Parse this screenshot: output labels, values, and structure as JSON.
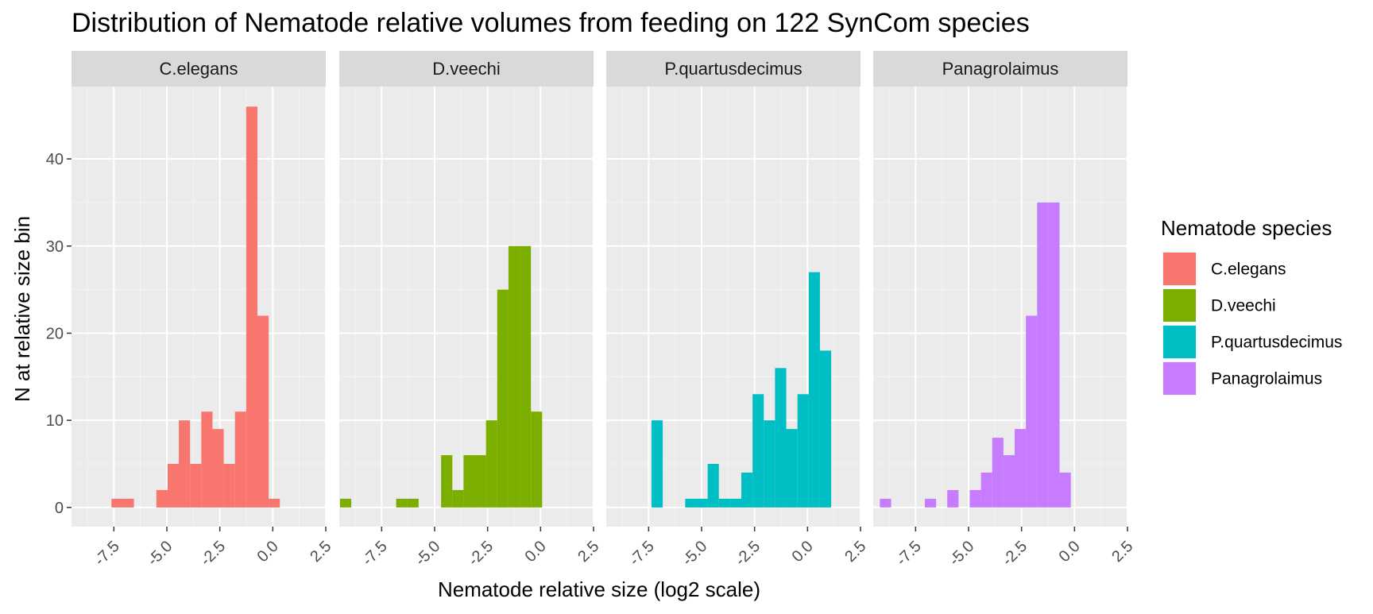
{
  "chart_data": {
    "type": "bar",
    "title": "Distribution of Nematode relative volumes from feeding on 122 SynCom species",
    "xlabel": "Nematode relative size (log2 scale)",
    "ylabel": "N at relative size bin",
    "xlim": [
      -9.5,
      2.5
    ],
    "ylim": [
      -2.2,
      48.3
    ],
    "x_ticks": [
      -7.5,
      -5.0,
      -2.5,
      0.0,
      2.5
    ],
    "x_tick_labels": [
      "-7.5",
      "-5.0",
      "-2.5",
      "0.0",
      "2.5"
    ],
    "y_ticks": [
      0,
      10,
      20,
      30,
      40
    ],
    "y_tick_labels": [
      "0",
      "10",
      "20",
      "30",
      "40"
    ],
    "bin_width": 0.53,
    "grid": true,
    "legend": {
      "title": "Nematode species",
      "placement": "right"
    },
    "series": [
      {
        "name": "C.elegans",
        "color": "#F8766D",
        "bins": [
          {
            "x": -7.35,
            "n": 1
          },
          {
            "x": -6.82,
            "n": 1
          },
          {
            "x": -5.23,
            "n": 2
          },
          {
            "x": -4.7,
            "n": 5
          },
          {
            "x": -4.17,
            "n": 10
          },
          {
            "x": -3.64,
            "n": 5
          },
          {
            "x": -3.11,
            "n": 11
          },
          {
            "x": -2.58,
            "n": 9
          },
          {
            "x": -2.05,
            "n": 5
          },
          {
            "x": -1.52,
            "n": 11
          },
          {
            "x": -0.99,
            "n": 46
          },
          {
            "x": -0.46,
            "n": 22
          },
          {
            "x": 0.07,
            "n": 1
          }
        ]
      },
      {
        "name": "D.veechi",
        "color": "#7CAE00",
        "bins": [
          {
            "x": -9.2,
            "n": 1
          },
          {
            "x": -6.55,
            "n": 1
          },
          {
            "x": -6.02,
            "n": 1
          },
          {
            "x": -4.43,
            "n": 6
          },
          {
            "x": -3.9,
            "n": 2
          },
          {
            "x": -3.37,
            "n": 6
          },
          {
            "x": -2.84,
            "n": 6
          },
          {
            "x": -2.31,
            "n": 10
          },
          {
            "x": -1.78,
            "n": 25
          },
          {
            "x": -1.25,
            "n": 30
          },
          {
            "x": -0.72,
            "n": 30
          },
          {
            "x": -0.19,
            "n": 11
          }
        ]
      },
      {
        "name": "P.quartusdecimus",
        "color": "#00BFC4",
        "bins": [
          {
            "x": -7.1,
            "n": 10
          },
          {
            "x": -5.51,
            "n": 1
          },
          {
            "x": -4.98,
            "n": 1
          },
          {
            "x": -4.45,
            "n": 5
          },
          {
            "x": -3.92,
            "n": 1
          },
          {
            "x": -3.39,
            "n": 1
          },
          {
            "x": -2.86,
            "n": 4
          },
          {
            "x": -2.33,
            "n": 13
          },
          {
            "x": -1.8,
            "n": 10
          },
          {
            "x": -1.27,
            "n": 16
          },
          {
            "x": -0.74,
            "n": 9
          },
          {
            "x": -0.21,
            "n": 13
          },
          {
            "x": 0.32,
            "n": 27
          },
          {
            "x": 0.85,
            "n": 18
          }
        ]
      },
      {
        "name": "Panagrolaimus",
        "color": "#C77CFF",
        "bins": [
          {
            "x": -8.92,
            "n": 1
          },
          {
            "x": -6.8,
            "n": 1
          },
          {
            "x": -5.74,
            "n": 2
          },
          {
            "x": -4.68,
            "n": 2
          },
          {
            "x": -4.15,
            "n": 4
          },
          {
            "x": -3.62,
            "n": 8
          },
          {
            "x": -3.09,
            "n": 6
          },
          {
            "x": -2.56,
            "n": 9
          },
          {
            "x": -2.03,
            "n": 22
          },
          {
            "x": -1.5,
            "n": 35
          },
          {
            "x": -0.97,
            "n": 35
          },
          {
            "x": -0.44,
            "n": 4
          }
        ]
      }
    ]
  }
}
